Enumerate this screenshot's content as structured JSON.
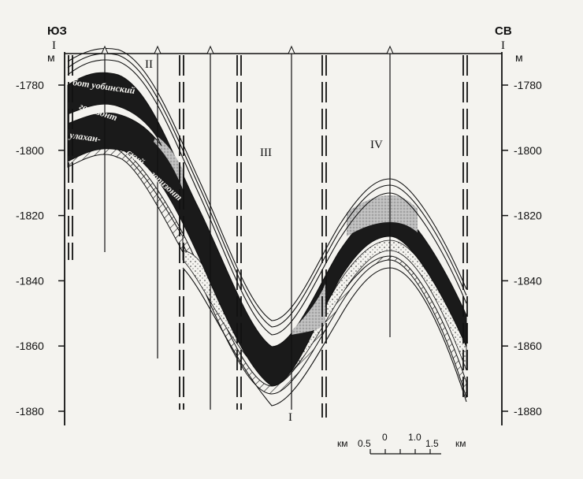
{
  "corners": {
    "left": "ЮЗ",
    "right": "СВ",
    "left_roman": "I",
    "right_roman": "I",
    "bottom_roman": "I"
  },
  "unit": "м",
  "axis_ticks": [
    "-1780",
    "-1800",
    "-1820",
    "-1840",
    "-1860",
    "-1880"
  ],
  "blocks": [
    "II",
    "III",
    "IV"
  ],
  "horizon_labels": [
    "бот уобинский",
    "горизонт",
    "улахан-",
    "ский",
    "горизонт"
  ],
  "scale": {
    "unit_left": "км",
    "unit_right": "км",
    "labels": [
      "0.5",
      "0",
      "1.0",
      "1.5"
    ]
  }
}
